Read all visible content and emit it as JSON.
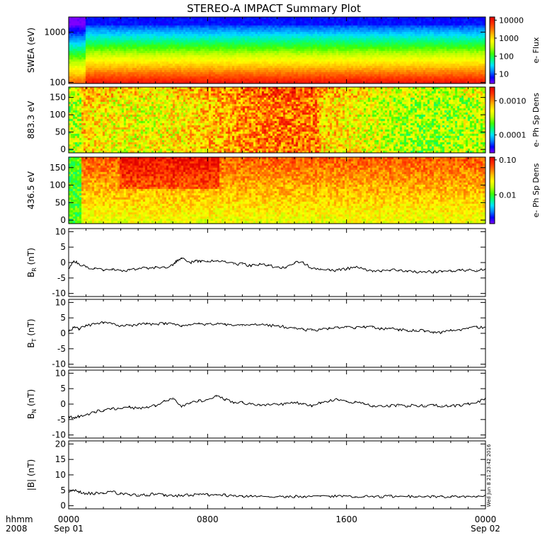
{
  "title": "STEREO-A IMPACT Summary Plot",
  "stamp": "Wed Jun  8 21:23:42 2016",
  "x_axis": {
    "units": [
      "hhmm",
      "2008"
    ],
    "ticks": [
      {
        "hour": 0,
        "label": "0000",
        "date": "Sep 01"
      },
      {
        "hour": 8,
        "label": "0800",
        "date": ""
      },
      {
        "hour": 16,
        "label": "1600",
        "date": ""
      },
      {
        "hour": 24,
        "label": "0000",
        "date": "Sep 02"
      }
    ]
  },
  "colors": {
    "colorscale": [
      "#7f00ff",
      "#0000ff",
      "#0080ff",
      "#00e0ff",
      "#00ff80",
      "#40ff00",
      "#c0ff00",
      "#ffff00",
      "#ffc000",
      "#ff7000",
      "#ff2a00",
      "#e00000"
    ],
    "line": "#000000",
    "frame": "#000000"
  },
  "chart_data": [
    {
      "type": "heatmap",
      "ylabel": "SWEA (eV)",
      "yscale": "log",
      "ylim": [
        95,
        2000
      ],
      "yticks": [
        {
          "v": 100,
          "label": "100"
        },
        {
          "v": 1000,
          "label": "1000"
        }
      ],
      "colorbar": {
        "label": "e- Flux",
        "scale": "log",
        "range": [
          3,
          15000
        ],
        "ticks": [
          {
            "v": 10,
            "label": "10"
          },
          {
            "v": 100,
            "label": "100"
          },
          {
            "v": 1000,
            "label": "1000"
          },
          {
            "v": 10000,
            "label": "10000"
          }
        ]
      }
    },
    {
      "type": "heatmap",
      "ylabel": "883.3 eV",
      "yscale": "linear",
      "ylim": [
        -10,
        180
      ],
      "yticks": [
        {
          "v": 0,
          "label": "0"
        },
        {
          "v": 50,
          "label": "50"
        },
        {
          "v": 100,
          "label": "100"
        },
        {
          "v": 150,
          "label": "150"
        }
      ],
      "colorbar": {
        "label": "e- Ph Sp Dens",
        "scale": "log",
        "range": [
          3e-05,
          0.0025
        ],
        "ticks": [
          {
            "v": 0.0001,
            "label": "0.0001"
          },
          {
            "v": 0.001,
            "label": "0.0010"
          }
        ]
      }
    },
    {
      "type": "heatmap",
      "ylabel": "436.5 eV",
      "yscale": "linear",
      "ylim": [
        -10,
        180
      ],
      "yticks": [
        {
          "v": 0,
          "label": "0"
        },
        {
          "v": 50,
          "label": "50"
        },
        {
          "v": 100,
          "label": "100"
        },
        {
          "v": 150,
          "label": "150"
        }
      ],
      "colorbar": {
        "label": "e- Ph Sp Dens",
        "scale": "log",
        "range": [
          0.0015,
          0.12
        ],
        "ticks": [
          {
            "v": 0.01,
            "label": "0.01"
          },
          {
            "v": 0.1,
            "label": "0.10"
          }
        ]
      }
    },
    {
      "type": "line",
      "ylabel": "B",
      "ylabel_sub": "R",
      "ylabel_unit": " (nT)",
      "ylim": [
        -11,
        11
      ],
      "yticks": [
        {
          "v": -10,
          "label": "-10"
        },
        {
          "v": -5,
          "label": "-5"
        },
        {
          "v": 0,
          "label": "0"
        },
        {
          "v": 5,
          "label": "5"
        },
        {
          "v": 10,
          "label": "10"
        }
      ],
      "x": [
        0,
        0.3,
        0.6,
        1,
        1.5,
        2,
        2.5,
        3,
        3.5,
        4,
        4.5,
        5,
        5.5,
        6,
        6.2,
        6.5,
        7,
        7.3,
        7.6,
        8,
        8.5,
        9,
        9.5,
        10,
        10.5,
        11,
        11.5,
        12,
        12.5,
        13,
        13.5,
        14,
        14.5,
        15,
        15.5,
        16,
        16.5,
        17,
        17.5,
        18,
        18.5,
        19,
        19.5,
        20,
        20.5,
        21,
        21.5,
        22,
        22.5,
        23,
        23.5,
        24
      ],
      "y": [
        -2,
        0.5,
        -0.5,
        -1.5,
        -2,
        -2.5,
        -2,
        -2.5,
        -2.5,
        -2,
        -1.8,
        -1.5,
        -1.5,
        -1,
        0.5,
        1.5,
        0,
        0.5,
        0.5,
        0.5,
        0.5,
        0.5,
        -0.5,
        -0.5,
        -1,
        -0.5,
        -1,
        -1.5,
        -1.5,
        0,
        0,
        -2,
        -2,
        -2.5,
        -2.5,
        -2,
        -1.5,
        -2,
        -3,
        -2.8,
        -2.5,
        -2.5,
        -2.8,
        -3,
        -3,
        -3,
        -2.8,
        -2.8,
        -2.5,
        -2.5,
        -2.5,
        -2
      ]
    },
    {
      "type": "line",
      "ylabel": "B",
      "ylabel_sub": "T",
      "ylabel_unit": " (nT)",
      "ylim": [
        -11,
        11
      ],
      "yticks": [
        {
          "v": -10,
          "label": "-10"
        },
        {
          "v": -5,
          "label": "-5"
        },
        {
          "v": 0,
          "label": "0"
        },
        {
          "v": 5,
          "label": "5"
        },
        {
          "v": 10,
          "label": "10"
        }
      ],
      "x": [
        0,
        0.3,
        0.6,
        1,
        1.5,
        2,
        2.5,
        3,
        3.5,
        4,
        4.5,
        5,
        5.5,
        6,
        6.5,
        7,
        7.5,
        8,
        8.5,
        9,
        9.5,
        10,
        10.5,
        11,
        11.5,
        12,
        12.5,
        13,
        13.5,
        14,
        14.5,
        15,
        15.5,
        16,
        16.5,
        17,
        17.5,
        18,
        18.5,
        19,
        19.5,
        20,
        20.5,
        21,
        21.5,
        22,
        22.5,
        23,
        23.5,
        24
      ],
      "y": [
        0.5,
        2,
        1.5,
        2.5,
        3,
        3.5,
        3,
        2.5,
        2.5,
        2.8,
        3,
        3,
        3.2,
        3,
        2.5,
        2.8,
        3,
        3,
        3,
        2.8,
        2.5,
        2.5,
        2.8,
        2.8,
        2.5,
        2.5,
        2,
        1.5,
        1.2,
        1,
        1.2,
        1.5,
        2,
        2,
        1.8,
        2,
        2,
        1.5,
        1.5,
        1.2,
        1,
        1,
        0.8,
        0.5,
        0.2,
        1,
        1.2,
        1.5,
        2,
        2
      ]
    },
    {
      "type": "line",
      "ylabel": "B",
      "ylabel_sub": "N",
      "ylabel_unit": " (nT)",
      "ylim": [
        -11,
        11
      ],
      "yticks": [
        {
          "v": -10,
          "label": "-10"
        },
        {
          "v": -5,
          "label": "-5"
        },
        {
          "v": 0,
          "label": "0"
        },
        {
          "v": 5,
          "label": "5"
        },
        {
          "v": 10,
          "label": "10"
        }
      ],
      "x": [
        0,
        0.3,
        0.6,
        1,
        1.5,
        2,
        2.5,
        3,
        3.5,
        4,
        4.5,
        5,
        5.5,
        6,
        6.5,
        7,
        7.5,
        8,
        8.5,
        9,
        9.5,
        10,
        10.5,
        11,
        11.5,
        12,
        12.5,
        13,
        13.5,
        14,
        14.5,
        15,
        15.5,
        16,
        16.5,
        17,
        17.5,
        18,
        18.5,
        19,
        19.5,
        20,
        20.5,
        21,
        21.5,
        22,
        22.5,
        23,
        23.5,
        24
      ],
      "y": [
        -4,
        -4.5,
        -4,
        -3.5,
        -2.5,
        -2,
        -1.5,
        -1.5,
        -1,
        -1.5,
        -1,
        -0.5,
        1,
        2,
        -1,
        0.5,
        1,
        1.5,
        2.5,
        1.5,
        0.5,
        0.5,
        0,
        -0.5,
        0,
        0,
        0,
        0.5,
        0,
        -0.5,
        0.5,
        1,
        1.5,
        1,
        0.5,
        0,
        -0.5,
        -0.5,
        -0.5,
        -0.5,
        -0.5,
        -0.5,
        -0.5,
        -0.5,
        -0.5,
        -0.5,
        -0.5,
        0,
        0.5,
        2
      ]
    },
    {
      "type": "line",
      "ylabel": "|B| (nT)",
      "ylim": [
        -1,
        21
      ],
      "yticks": [
        {
          "v": 0,
          "label": "0"
        },
        {
          "v": 5,
          "label": "5"
        },
        {
          "v": 10,
          "label": "10"
        },
        {
          "v": 15,
          "label": "15"
        },
        {
          "v": 20,
          "label": "20"
        }
      ],
      "x": [
        0,
        0.3,
        0.6,
        1,
        1.5,
        2,
        2.5,
        3,
        3.5,
        4,
        4.5,
        5,
        5.5,
        6,
        6.5,
        7,
        7.5,
        8,
        8.5,
        9,
        9.5,
        10,
        10.5,
        11,
        11.5,
        12,
        12.5,
        13,
        13.5,
        14,
        14.5,
        15,
        15.5,
        16,
        16.5,
        17,
        17.5,
        18,
        18.5,
        19,
        19.5,
        20,
        20.5,
        21,
        21.5,
        22,
        22.5,
        23,
        23.5,
        24
      ],
      "y": [
        4.8,
        5,
        4.5,
        4,
        4,
        4.2,
        4.5,
        3.8,
        3.5,
        3.5,
        3.5,
        3.8,
        3.5,
        3.2,
        3.3,
        3.5,
        3.5,
        3.5,
        3.5,
        3.5,
        3,
        3,
        3.2,
        3,
        3,
        3,
        3,
        3,
        3,
        3,
        3,
        3,
        3.2,
        3.2,
        3,
        3,
        3,
        3,
        3,
        3,
        3,
        3,
        3,
        3,
        3,
        3,
        3,
        3,
        3,
        3.5
      ]
    }
  ]
}
